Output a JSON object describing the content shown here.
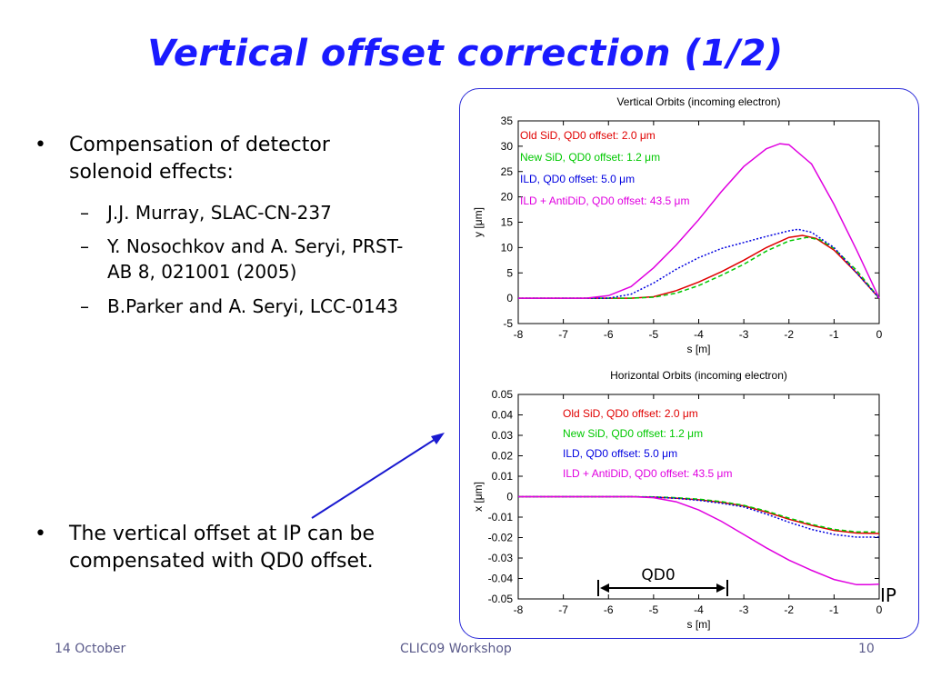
{
  "slide": {
    "title": "Vertical offset correction (1/2)",
    "bullets": [
      {
        "text": "Compensation of detector solenoid effects:",
        "subitems": [
          "J.J. Murray, SLAC-CN-237",
          "Y. Nosochkov and A. Seryi, PRST-AB 8, 021001 (2005)",
          "B.Parker and A. Seryi, LCC-0143"
        ]
      },
      {
        "text": "The vertical offset at IP can be compensated with QD0 offset.",
        "subitems": []
      }
    ],
    "bullet_mark": "•",
    "sub_mark": "–",
    "annotations": {
      "qd0": "QD0",
      "ip": "IP"
    },
    "footer": {
      "date": "14 October",
      "event": "CLIC09 Workshop",
      "page": "10"
    }
  },
  "colors": {
    "title": "#1a1aff",
    "border": "#2a2ad8",
    "arrow": "#1a1ad0",
    "red": "#e00000",
    "green": "#00c800",
    "blue": "#0000e0",
    "magenta": "#e000e0"
  },
  "chart_data": [
    {
      "type": "line",
      "title": "Vertical Orbits (incoming electron)",
      "xlabel": "s [m]",
      "ylabel": "y [μm]",
      "xlim": [
        -8,
        0
      ],
      "ylim": [
        -5,
        35
      ],
      "xticks": [
        "-8",
        "-7",
        "-6",
        "-5",
        "-4",
        "-3",
        "-2",
        "-1",
        "0"
      ],
      "yticks": [
        "-5",
        "0",
        "5",
        "10",
        "15",
        "20",
        "25",
        "30",
        "35"
      ],
      "legend_position": "top-left",
      "series": [
        {
          "name": "Old SiD, QD0 offset: 2.0 μm",
          "color": "#e00000",
          "style": "solid",
          "x": [
            -8,
            -5.5,
            -5,
            -4.5,
            -4,
            -3.5,
            -3,
            -2.5,
            -2,
            -1.7,
            -1.4,
            -1,
            -0.5,
            0
          ],
          "y": [
            0,
            0,
            0.3,
            1.5,
            3.2,
            5.2,
            7.5,
            10,
            12,
            12.4,
            11.8,
            9.5,
            5,
            0
          ]
        },
        {
          "name": "New SiD, QD0 offset: 1.2 μm",
          "color": "#00c800",
          "style": "dashed",
          "x": [
            -8,
            -5.5,
            -5,
            -4.5,
            -4,
            -3.5,
            -3,
            -2.5,
            -2,
            -1.6,
            -1.3,
            -1,
            -0.5,
            0
          ],
          "y": [
            0,
            0,
            0.2,
            1,
            2.5,
            4.5,
            6.7,
            9.3,
            11.3,
            12,
            11.5,
            9.8,
            5.5,
            0
          ]
        },
        {
          "name": "ILD, QD0 offset: 5.0 μm",
          "color": "#0000e0",
          "style": "dotted",
          "x": [
            -8,
            -6,
            -5.5,
            -5,
            -4.5,
            -4,
            -3.5,
            -3,
            -2.5,
            -2,
            -1.8,
            -1.5,
            -1,
            -0.5,
            0
          ],
          "y": [
            0,
            0,
            0.8,
            3,
            5.7,
            8,
            9.8,
            11,
            12.2,
            13.3,
            13.6,
            13,
            10,
            5,
            0
          ]
        },
        {
          "name": "ILD + AntiDiD, QD0 offset: 43.5 μm",
          "color": "#e000e0",
          "style": "solid",
          "x": [
            -8,
            -6.5,
            -6,
            -5.5,
            -5,
            -4.5,
            -4,
            -3.5,
            -3,
            -2.5,
            -2.2,
            -2,
            -1.5,
            -1,
            -0.5,
            0
          ],
          "y": [
            0,
            0,
            0.5,
            2.3,
            6,
            10.5,
            15.5,
            21,
            26,
            29.5,
            30.5,
            30.3,
            26.5,
            18.5,
            9.5,
            0
          ]
        }
      ]
    },
    {
      "type": "line",
      "title": "Horizontal Orbits (incoming electron)",
      "xlabel": "s [m]",
      "ylabel": "x [μm]",
      "xlim": [
        -8,
        0
      ],
      "ylim": [
        -0.05,
        0.05
      ],
      "xticks": [
        "-8",
        "-7",
        "-6",
        "-5",
        "-4",
        "-3",
        "-2",
        "-1",
        "0"
      ],
      "yticks": [
        "-0.05",
        "-0.04",
        "-0.03",
        "-0.02",
        "-0.01",
        "0",
        "0.01",
        "0.02",
        "0.03",
        "0.04",
        "0.05"
      ],
      "legend_position": "top-center",
      "series": [
        {
          "name": "Old SiD, QD0 offset: 2.0 μm",
          "color": "#e00000",
          "style": "solid",
          "x": [
            -8,
            -5.5,
            -5,
            -4.5,
            -4,
            -3.5,
            -3,
            -2.5,
            -2,
            -1.5,
            -1,
            -0.5,
            0
          ],
          "y": [
            0,
            0,
            -0.0002,
            -0.0007,
            -0.0015,
            -0.0027,
            -0.0045,
            -0.0075,
            -0.011,
            -0.014,
            -0.0165,
            -0.0178,
            -0.018
          ]
        },
        {
          "name": "New SiD, QD0 offset: 1.2 μm",
          "color": "#00c800",
          "style": "dashed",
          "x": [
            -8,
            -5.5,
            -5,
            -4.5,
            -4,
            -3.5,
            -3,
            -2.5,
            -2,
            -1.5,
            -1,
            -0.5,
            0
          ],
          "y": [
            0,
            0,
            -0.0001,
            -0.0005,
            -0.0012,
            -0.0024,
            -0.0042,
            -0.007,
            -0.0105,
            -0.0135,
            -0.016,
            -0.0172,
            -0.0173
          ]
        },
        {
          "name": "ILD, QD0 offset: 5.0 μm",
          "color": "#0000e0",
          "style": "dotted",
          "x": [
            -8,
            -5.5,
            -5,
            -4.5,
            -4,
            -3.5,
            -3,
            -2.5,
            -2,
            -1.5,
            -1,
            -0.5,
            0
          ],
          "y": [
            0,
            0,
            -0.0002,
            -0.0008,
            -0.0018,
            -0.0032,
            -0.005,
            -0.0085,
            -0.0125,
            -0.016,
            -0.0185,
            -0.0198,
            -0.0198
          ]
        },
        {
          "name": "ILD + AntiDiD, QD0 offset: 43.5 μm",
          "color": "#e000e0",
          "style": "solid",
          "x": [
            -8,
            -5.5,
            -5,
            -4.5,
            -4,
            -3.5,
            -3,
            -2.5,
            -2,
            -1.5,
            -1,
            -0.5,
            -0.2,
            0
          ],
          "y": [
            0,
            0,
            -0.0005,
            -0.0025,
            -0.0065,
            -0.012,
            -0.0185,
            -0.025,
            -0.031,
            -0.036,
            -0.0405,
            -0.043,
            -0.043,
            -0.0428
          ]
        }
      ]
    }
  ]
}
